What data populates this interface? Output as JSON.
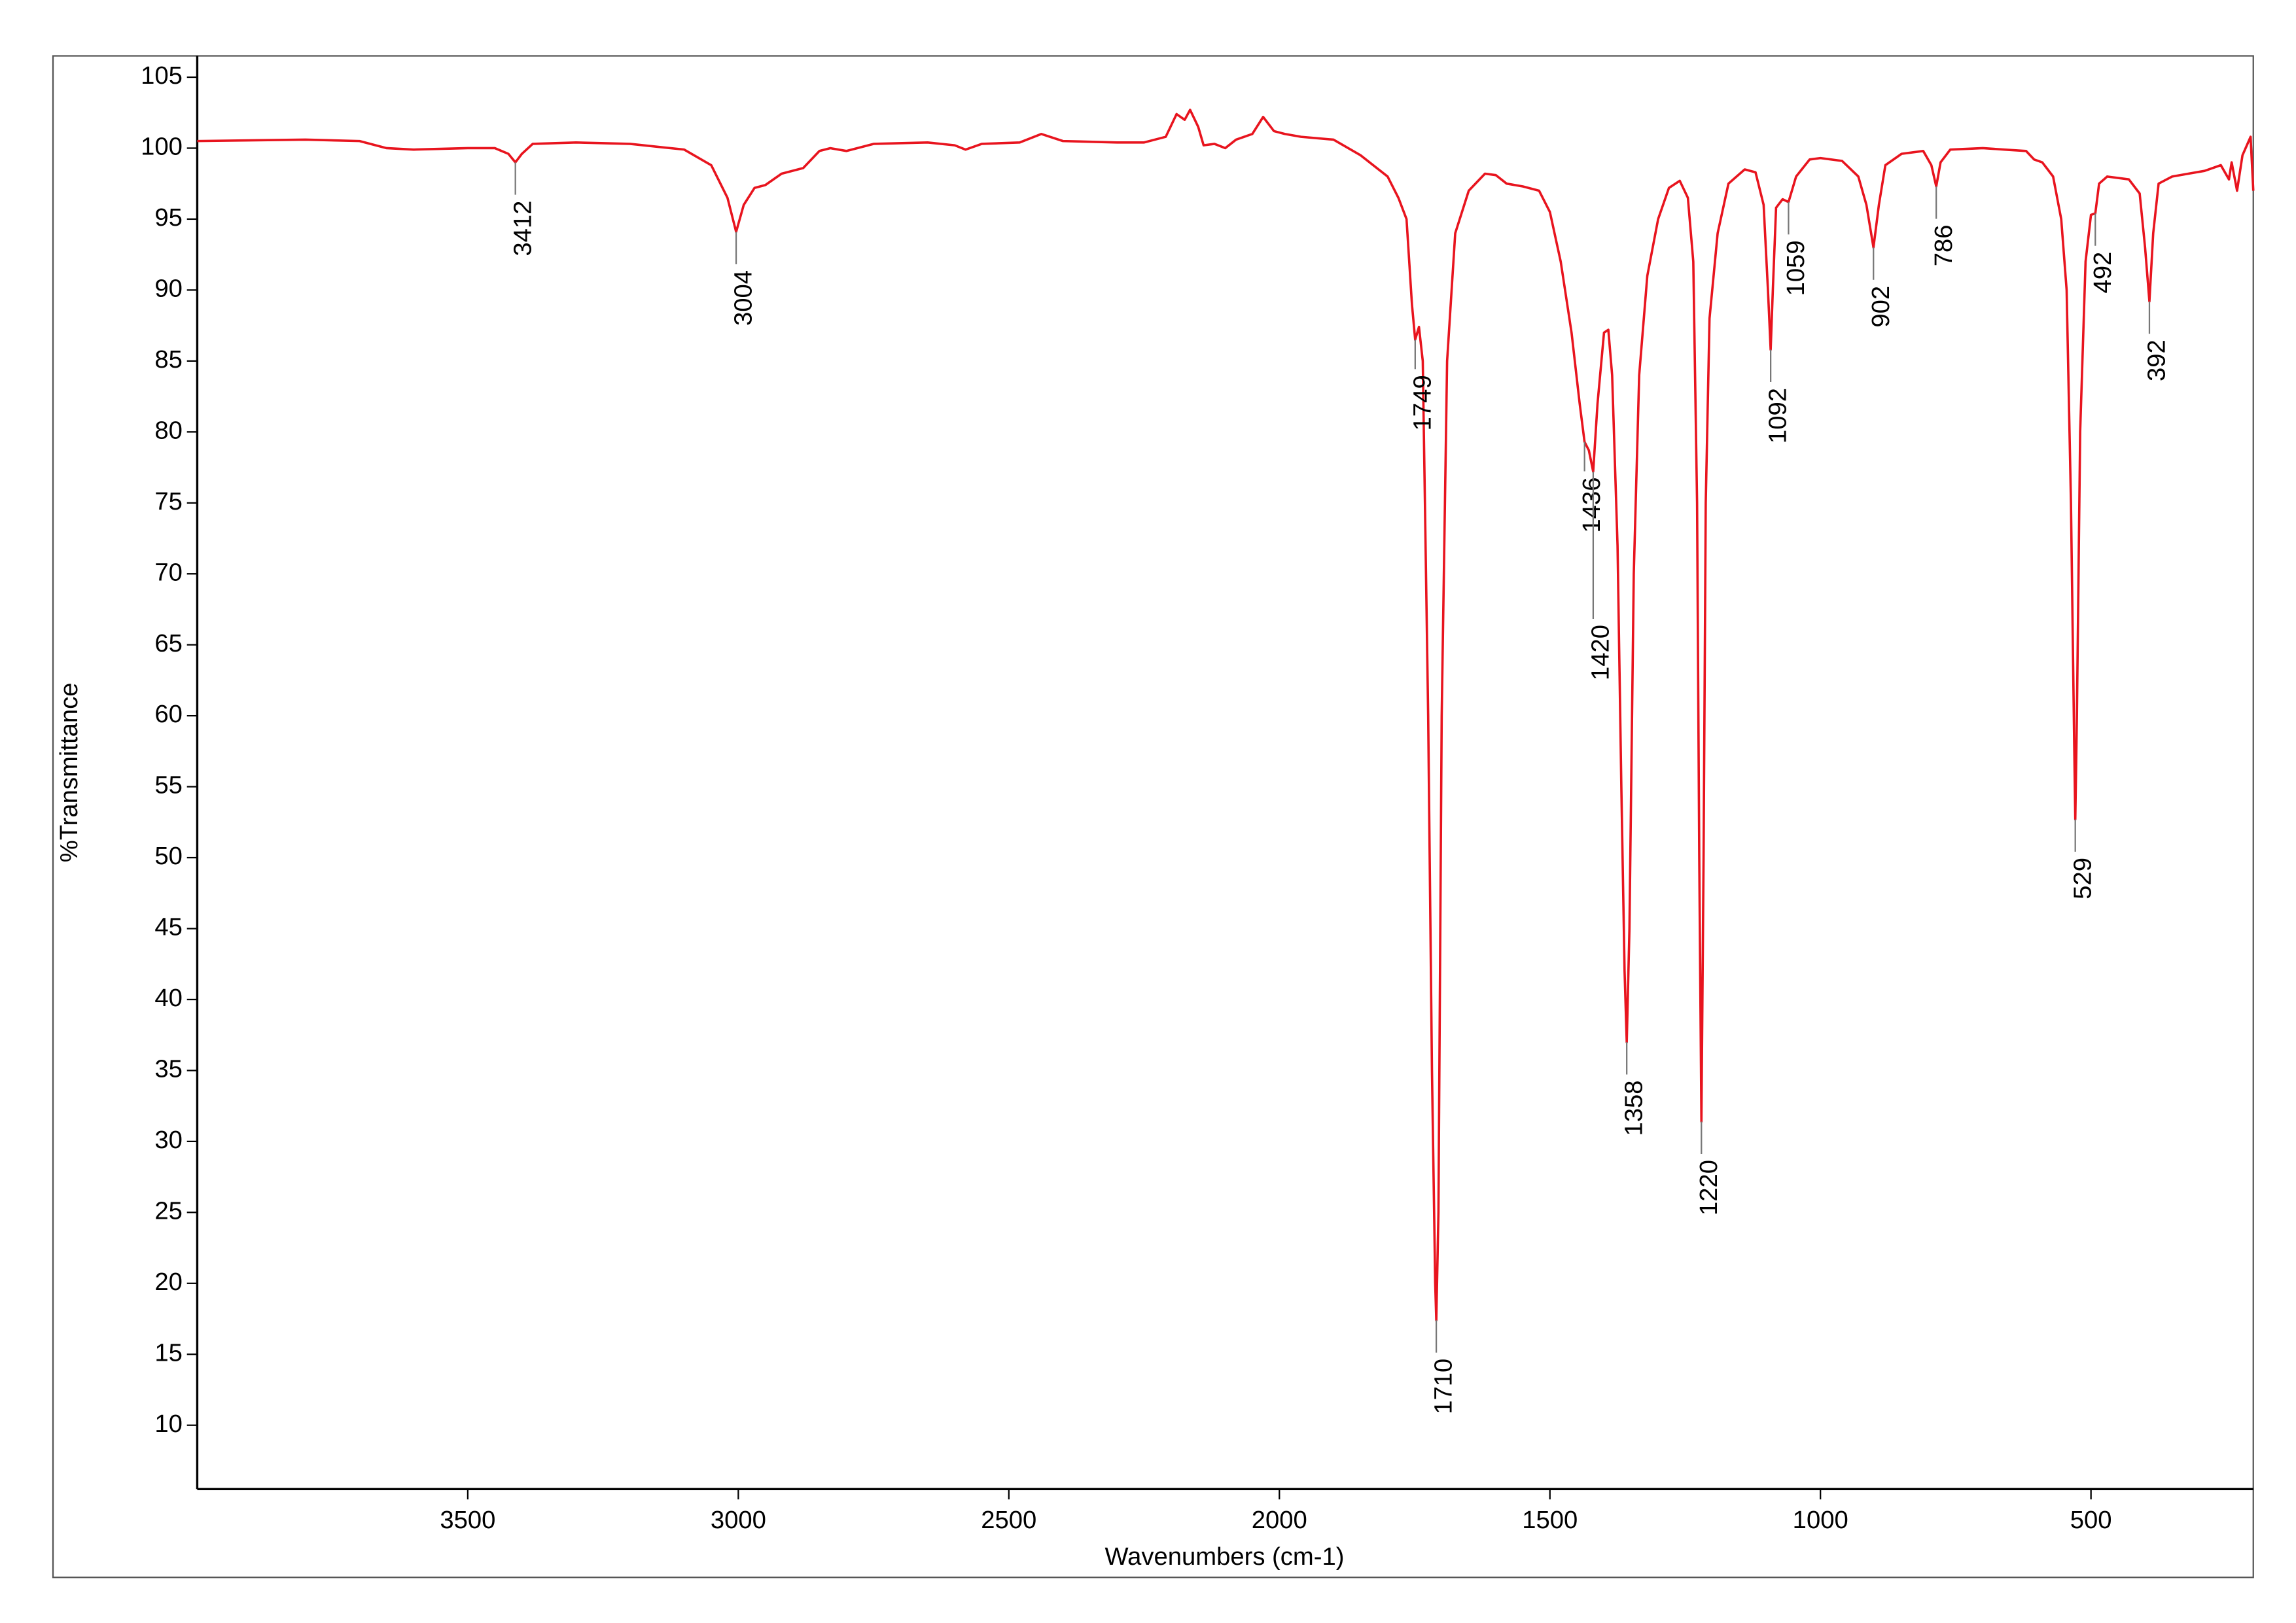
{
  "chart_data": {
    "type": "line",
    "xlabel": "Wavenumbers (cm-1)",
    "ylabel": "%Transmittance",
    "xlim": [
      4000,
      200
    ],
    "ylim": [
      5.5,
      106.5
    ],
    "xticks": [
      3500,
      3000,
      2500,
      2000,
      1500,
      1000,
      500
    ],
    "yticks": [
      10,
      15,
      20,
      25,
      30,
      35,
      40,
      45,
      50,
      55,
      60,
      65,
      70,
      75,
      80,
      85,
      90,
      95,
      100,
      105
    ],
    "color": "#e8141e",
    "x": [
      4000,
      3800,
      3700,
      3650,
      3600,
      3500,
      3450,
      3425,
      3412,
      3400,
      3380,
      3300,
      3200,
      3100,
      3050,
      3020,
      3004,
      2990,
      2970,
      2950,
      2920,
      2880,
      2850,
      2830,
      2800,
      2750,
      2650,
      2600,
      2580,
      2550,
      2480,
      2440,
      2400,
      2300,
      2250,
      2210,
      2190,
      2175,
      2165,
      2150,
      2140,
      2120,
      2100,
      2080,
      2050,
      2030,
      2010,
      1990,
      1960,
      1900,
      1850,
      1800,
      1780,
      1765,
      1755,
      1749,
      1742,
      1735,
      1725,
      1718,
      1712,
      1710,
      1706,
      1700,
      1690,
      1685,
      1675,
      1650,
      1620,
      1600,
      1580,
      1550,
      1520,
      1500,
      1480,
      1460,
      1445,
      1436,
      1428,
      1420,
      1412,
      1400,
      1392,
      1385,
      1375,
      1368,
      1362,
      1358,
      1353,
      1345,
      1335,
      1320,
      1300,
      1280,
      1260,
      1245,
      1235,
      1228,
      1224,
      1220,
      1216,
      1212,
      1205,
      1190,
      1170,
      1140,
      1120,
      1105,
      1097,
      1092,
      1088,
      1082,
      1070,
      1059,
      1045,
      1020,
      1000,
      960,
      930,
      915,
      902,
      892,
      880,
      850,
      810,
      795,
      786,
      778,
      760,
      700,
      660,
      620,
      605,
      590,
      570,
      555,
      545,
      537,
      531,
      529,
      526,
      520,
      510,
      500,
      492,
      485,
      470,
      430,
      410,
      400,
      392,
      385,
      375,
      350,
      320,
      290,
      260,
      245,
      240,
      230,
      220,
      205,
      200
    ],
    "y": [
      100.5,
      100.6,
      100.5,
      100.0,
      99.9,
      100.0,
      100.0,
      99.6,
      99.0,
      99.6,
      100.3,
      100.4,
      100.3,
      99.9,
      98.8,
      96.5,
      94.1,
      96.0,
      97.2,
      97.4,
      98.2,
      98.6,
      99.8,
      100.0,
      99.8,
      100.3,
      100.4,
      100.2,
      99.9,
      100.3,
      100.4,
      101.0,
      100.5,
      100.4,
      100.4,
      100.8,
      102.4,
      102.0,
      102.7,
      101.5,
      100.2,
      100.3,
      100.0,
      100.6,
      101.0,
      102.2,
      101.2,
      101.0,
      100.8,
      100.6,
      99.5,
      98.0,
      96.5,
      95.0,
      89.0,
      86.5,
      87.4,
      85.0,
      60.0,
      35.0,
      20.0,
      17.4,
      25.0,
      60.0,
      85.0,
      88.0,
      94.0,
      97.0,
      98.2,
      98.1,
      97.5,
      97.3,
      97.0,
      95.5,
      92.0,
      87.0,
      82.0,
      79.3,
      78.7,
      77.2,
      82.0,
      87.0,
      87.2,
      84.0,
      72.0,
      55.0,
      42.0,
      37.0,
      45.0,
      70.0,
      84.0,
      91.0,
      95.0,
      97.2,
      97.7,
      96.5,
      92.0,
      75.0,
      50.0,
      31.4,
      50.0,
      75.0,
      88.0,
      94.0,
      97.5,
      98.5,
      98.3,
      96.0,
      90.0,
      85.8,
      90.0,
      95.8,
      96.4,
      96.2,
      98.0,
      99.2,
      99.3,
      99.1,
      98.0,
      96.0,
      93.0,
      96.0,
      98.8,
      99.6,
      99.8,
      98.8,
      97.3,
      99.0,
      99.9,
      100.0,
      99.9,
      99.8,
      99.2,
      99.0,
      98.0,
      95.0,
      90.0,
      75.0,
      58.0,
      52.7,
      60.0,
      80.0,
      92.0,
      95.3,
      95.4,
      97.5,
      98.0,
      97.8,
      96.8,
      93.0,
      89.2,
      94.0,
      97.5,
      98.0,
      98.2,
      98.4,
      98.8,
      97.8,
      99.0,
      97.0,
      99.5,
      100.8,
      97.0
    ],
    "peaks": {
      "x": [
        3412,
        3004,
        1749,
        1710,
        1436,
        1420,
        1358,
        1220,
        1092,
        1059,
        902,
        786,
        529,
        492,
        392
      ],
      "y": [
        99.0,
        94.1,
        86.5,
        17.4,
        79.3,
        77.2,
        37.0,
        31.4,
        85.8,
        96.2,
        93.0,
        97.3,
        52.7,
        95.4,
        89.2
      ]
    }
  }
}
